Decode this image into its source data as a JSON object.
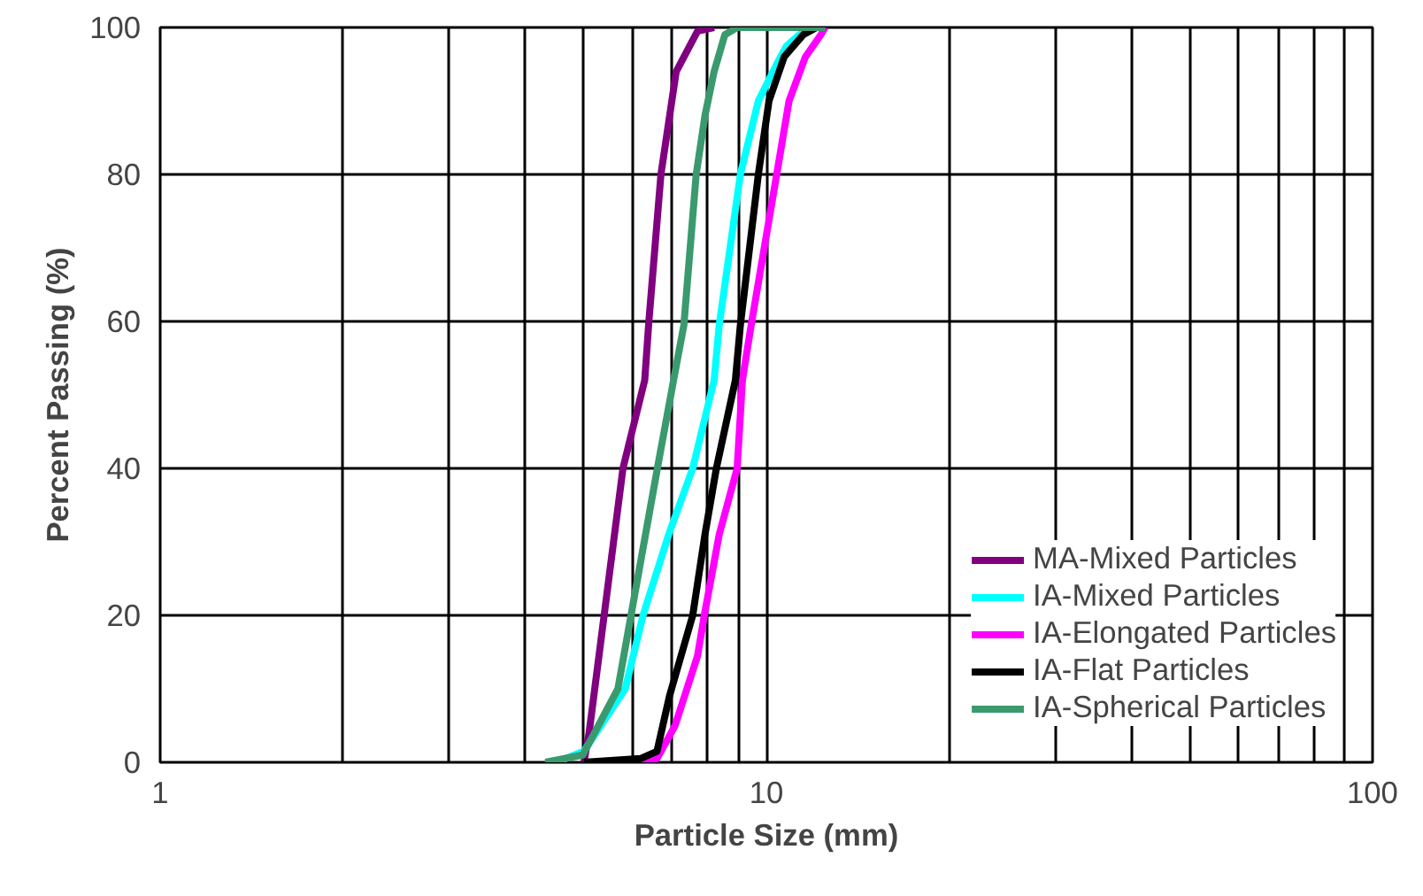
{
  "chart_data": {
    "type": "line",
    "xlabel": "Particle Size (mm)",
    "ylabel": "Percent Passing (%)",
    "log": "x",
    "grid": true,
    "legend": "bottom right",
    "marker": "none",
    "line_style": "solid",
    "xlim": [
      1,
      100
    ],
    "ylim": [
      0,
      100
    ],
    "xticks": [
      1,
      {
        "value": 2,
        "label": null
      },
      {
        "value": 3,
        "label": null
      },
      {
        "value": 4,
        "label": null
      },
      {
        "value": 5,
        "label": null
      },
      {
        "value": 6,
        "label": null
      },
      {
        "value": 7,
        "label": null
      },
      {
        "value": 8,
        "label": null
      },
      {
        "value": 9,
        "label": null
      },
      10,
      {
        "value": 20,
        "label": null
      },
      {
        "value": 30,
        "label": null
      },
      {
        "value": 40,
        "label": null
      },
      {
        "value": 50,
        "label": null
      },
      {
        "value": 60,
        "label": null
      },
      {
        "value": 70,
        "label": null
      },
      {
        "value": 80,
        "label": null
      },
      {
        "value": 90,
        "label": null
      },
      100
    ],
    "yticks": [
      0,
      20,
      40,
      60,
      80,
      100
    ],
    "series": [
      {
        "name": "MA-Mixed Particles",
        "color": "#800080",
        "x": [
          5.0,
          5.1,
          5.4,
          5.8,
          6.3,
          6.4,
          6.7,
          7.1,
          7.7,
          8.2
        ],
        "values": [
          0,
          4,
          20,
          40,
          52,
          60,
          80,
          94,
          99.5,
          100
        ]
      },
      {
        "name": "IA-Mixed Particles",
        "color": "#00ffff",
        "x": [
          4.5,
          5.0,
          5.85,
          6.26,
          6.9,
          7.56,
          8.2,
          8.36,
          9.06,
          9.7,
          10.4,
          10.8,
          11.7
        ],
        "values": [
          0,
          1.5,
          10,
          20,
          31,
          40,
          52,
          59.5,
          80,
          90,
          95,
          97.5,
          100
        ]
      },
      {
        "name": "IA-Elongated Particles",
        "color": "#ff00ff",
        "x": [
          6.2,
          6.6,
          7.07,
          7.7,
          7.9,
          8.36,
          8.95,
          9.13,
          9.44,
          10.4,
          10.9,
          11.6,
          12.3,
          12.5
        ],
        "values": [
          0,
          0.5,
          5,
          14.5,
          20,
          31,
          40,
          52,
          59.5,
          80,
          90,
          96,
          99,
          100
        ]
      },
      {
        "name": "IA-Flat Particles",
        "color": "#000000",
        "x": [
          5.0,
          6.2,
          6.6,
          6.92,
          7.56,
          7.92,
          8.27,
          8.89,
          9.06,
          9.7,
          10.1,
          10.7,
          11.5,
          12.1
        ],
        "values": [
          0,
          0.5,
          1.5,
          9,
          20,
          31,
          40,
          52,
          59.5,
          80,
          90,
          96,
          99,
          100
        ]
      },
      {
        "name": "IA-Spherical Particles",
        "color": "#3a9a6e",
        "x": [
          4.32,
          4.98,
          5.69,
          5.98,
          6.61,
          7.03,
          7.31,
          7.66,
          7.92,
          8.2,
          8.54,
          8.95,
          12.5
        ],
        "values": [
          0,
          1,
          10,
          20,
          40,
          52,
          59.5,
          80,
          88,
          94,
          99,
          100,
          100
        ]
      }
    ]
  }
}
